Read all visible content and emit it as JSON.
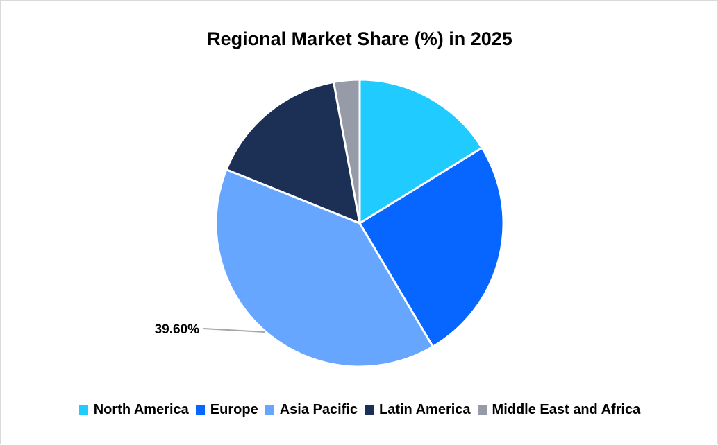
{
  "chart_data": {
    "type": "pie",
    "title": "Regional Market Share (%) in 2025",
    "categories": [
      "North America",
      "Europe",
      "Asia Pacific",
      "Latin America",
      "Middle East and Africa"
    ],
    "values": [
      16.2,
      25.3,
      39.6,
      16.0,
      2.9
    ],
    "colors": [
      "#1fcbff",
      "#0766ff",
      "#66a6ff",
      "#1c2f55",
      "#979ba8"
    ],
    "data_labels": [
      {
        "category": "Asia Pacific",
        "text": "39.60%"
      }
    ],
    "legend_position": "bottom"
  }
}
